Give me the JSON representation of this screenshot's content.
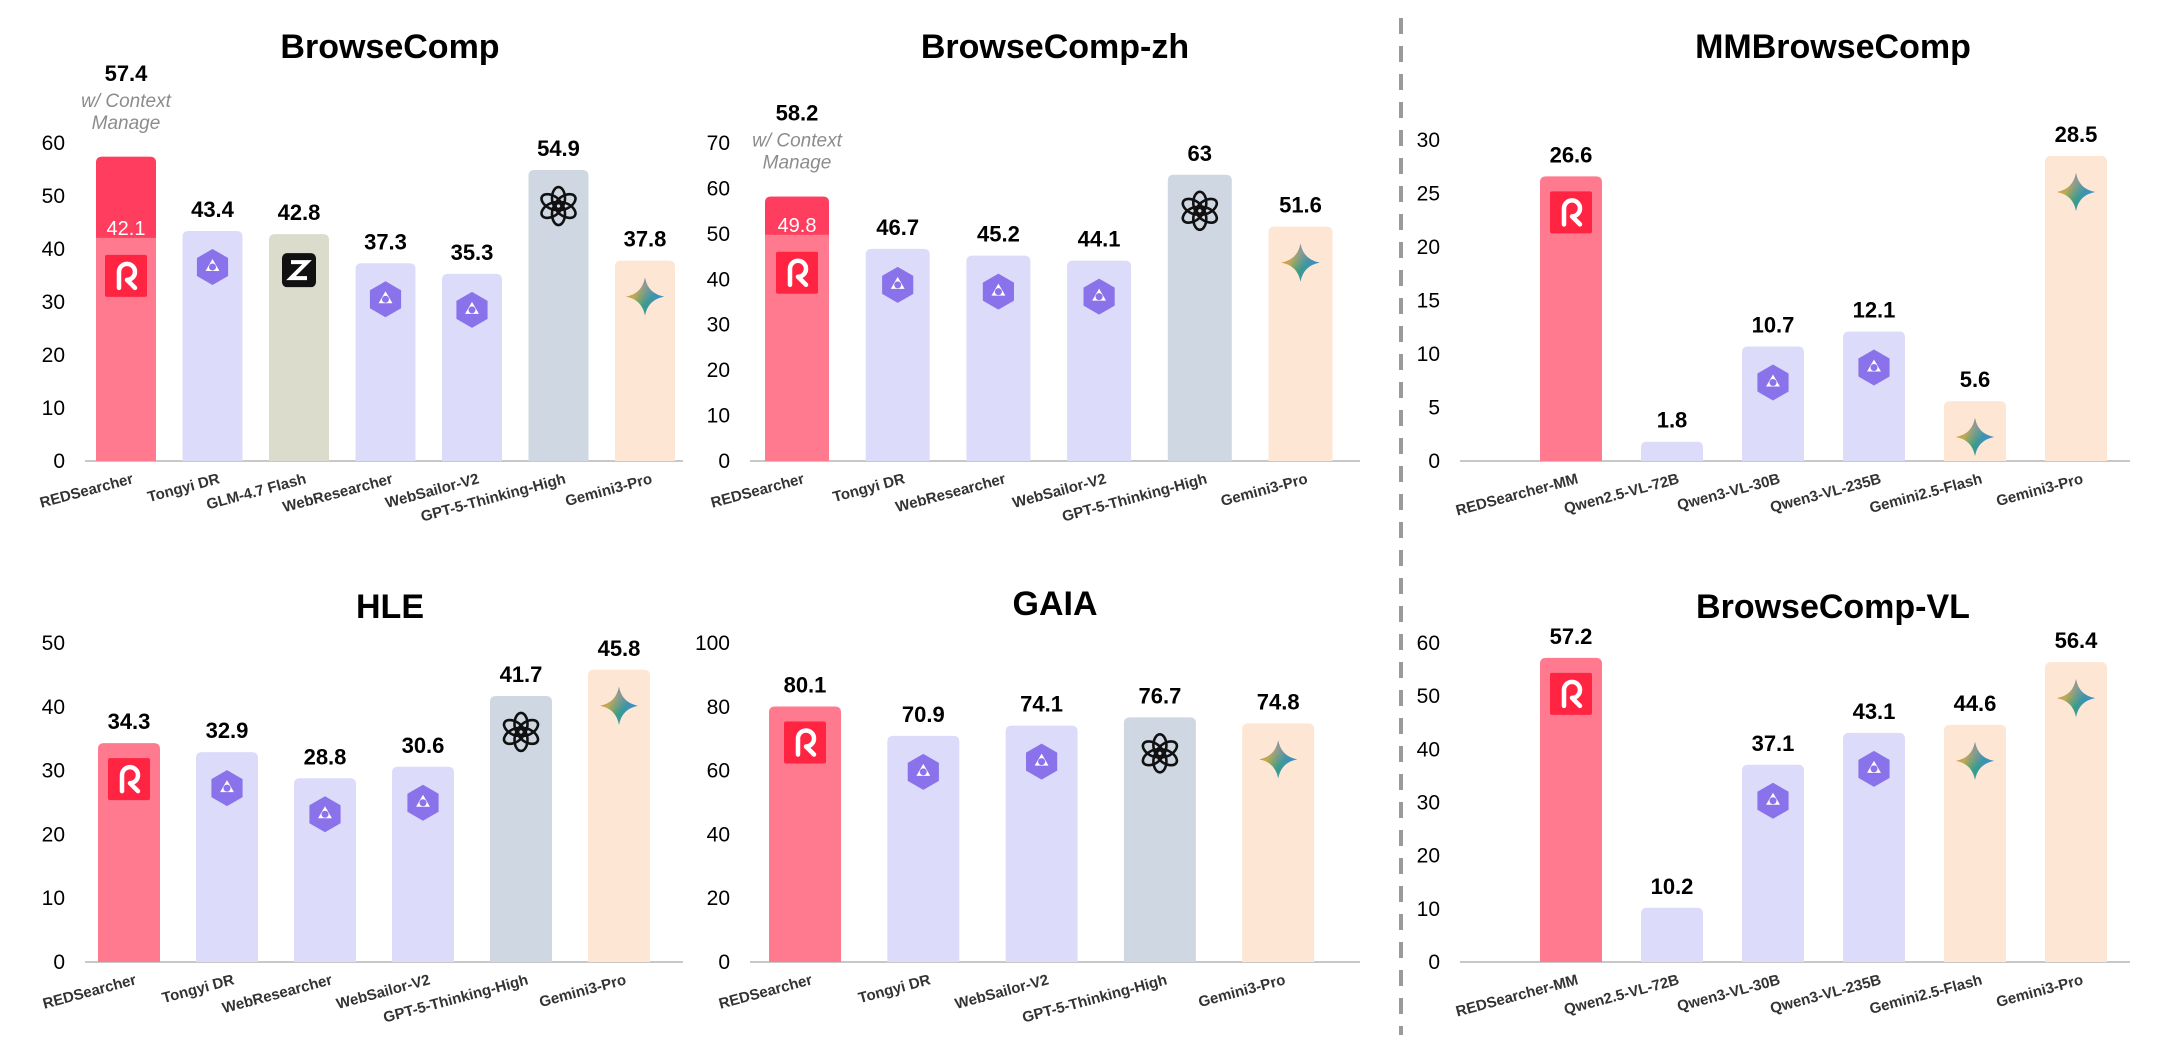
{
  "colors": {
    "redsearcher": "#ff7a8e",
    "redsearcher_dark": "#ff3d5f",
    "qwen": "#dcdcfa",
    "glm": "#dcdccc",
    "gpt": "#cfd8e2",
    "gemini": "#fde6d4",
    "axis": "#c8c8c8",
    "divider": "#9a9a9a"
  },
  "chart_data": [
    {
      "type": "bar",
      "title": "BrowseComp",
      "yticks": [
        0,
        10,
        20,
        30,
        40,
        50,
        60
      ],
      "ylim": [
        0,
        62.5
      ],
      "categories": [
        "REDSearcher",
        "Tongyi DR",
        "GLM-4.7 Flash",
        "WebResearcher",
        "WebSailor-V2",
        "GPT-5-Thinking-High",
        "Gemini3-Pro"
      ],
      "values": [
        57.4,
        43.4,
        42.8,
        37.3,
        35.3,
        54.9,
        37.8
      ],
      "labels": [
        "57.4",
        "43.4",
        "42.8",
        "37.3",
        "35.3",
        "54.9",
        "37.8"
      ],
      "icons": [
        "rednote-icon",
        "qwen-icon",
        "zhipu-icon",
        "qwen-icon",
        "qwen-icon",
        "openai-icon",
        "gemini-icon"
      ],
      "colors": [
        "redsearcher",
        "qwen",
        "glm",
        "qwen",
        "qwen",
        "gpt",
        "gemini"
      ],
      "inner_value": 42.1,
      "inner_label": "42.1",
      "annotation": [
        "w/ Context",
        "Manage"
      ]
    },
    {
      "type": "bar",
      "title": "BrowseComp-zh",
      "yticks": [
        0,
        10,
        20,
        30,
        40,
        50,
        60,
        70
      ],
      "ylim": [
        0,
        71.5
      ],
      "categories": [
        "REDSearcher",
        "Tongyi DR",
        "WebResearcher",
        "WebSailor-V2",
        "GPT-5-Thinking-High",
        "Gemini3-Pro"
      ],
      "values": [
        58.2,
        46.7,
        45.2,
        44.1,
        63,
        51.6
      ],
      "labels": [
        "58.2",
        "46.7",
        "45.2",
        "44.1",
        "63",
        "51.6"
      ],
      "icons": [
        "rednote-icon",
        "qwen-icon",
        "qwen-icon",
        "qwen-icon",
        "openai-icon",
        "gemini-icon"
      ],
      "colors": [
        "redsearcher",
        "qwen",
        "qwen",
        "qwen",
        "gpt",
        "gemini"
      ],
      "inner_value": 49.8,
      "inner_label": "49.8",
      "annotation": [
        "w/ Context",
        "Manage"
      ]
    },
    {
      "type": "bar",
      "title": "MMBrowseComp",
      "yticks": [
        0,
        5,
        10,
        15,
        20,
        25,
        30
      ],
      "ylim": [
        0,
        31.5
      ],
      "categories": [
        "REDSearcher-MM",
        "Qwen2.5-VL-72B",
        "Qwen3-VL-30B",
        "Qwen3-VL-235B",
        "Gemini2.5-Flash",
        "Gemini3-Pro"
      ],
      "values": [
        26.6,
        1.8,
        10.7,
        12.1,
        5.6,
        28.5
      ],
      "labels": [
        "26.6",
        "1.8",
        "10.7",
        "12.1",
        "5.6",
        "28.5"
      ],
      "icons": [
        "rednote-icon",
        "",
        "qwen-icon",
        "qwen-icon",
        "gemini-icon",
        "gemini-icon"
      ],
      "colors": [
        "redsearcher",
        "qwen",
        "qwen",
        "qwen",
        "gemini",
        "gemini"
      ]
    },
    {
      "type": "bar",
      "title": "HLE",
      "yticks": [
        0,
        10,
        20,
        30,
        40,
        50
      ],
      "ylim": [
        0,
        51.5
      ],
      "categories": [
        "REDSearcher",
        "Tongyi DR",
        "WebResearcher",
        "WebSailor-V2",
        "GPT-5-Thinking-High",
        "Gemini3-Pro"
      ],
      "values": [
        34.3,
        32.9,
        28.8,
        30.6,
        41.7,
        45.8
      ],
      "labels": [
        "34.3",
        "32.9",
        "28.8",
        "30.6",
        "41.7",
        "45.8"
      ],
      "icons": [
        "rednote-icon",
        "qwen-icon",
        "qwen-icon",
        "qwen-icon",
        "openai-icon",
        "gemini-icon"
      ],
      "colors": [
        "redsearcher",
        "qwen",
        "qwen",
        "qwen",
        "gpt",
        "gemini"
      ]
    },
    {
      "type": "bar",
      "title": "GAIA",
      "yticks": [
        0,
        20,
        40,
        60,
        80,
        100
      ],
      "ylim": [
        0,
        102
      ],
      "categories": [
        "REDSearcher",
        "Tongyi DR",
        "WebSailor-V2",
        "GPT-5-Thinking-High",
        "Gemini3-Pro"
      ],
      "values": [
        80.1,
        70.9,
        74.1,
        76.7,
        74.8
      ],
      "labels": [
        "80.1",
        "70.9",
        "74.1",
        "76.7",
        "74.8"
      ],
      "icons": [
        "rednote-icon",
        "qwen-icon",
        "qwen-icon",
        "openai-icon",
        "gemini-icon"
      ],
      "colors": [
        "redsearcher",
        "qwen",
        "qwen",
        "gpt",
        "gemini"
      ]
    },
    {
      "type": "bar",
      "title": "BrowseComp-VL",
      "yticks": [
        0,
        10,
        20,
        30,
        40,
        50,
        60
      ],
      "ylim": [
        0,
        61.5
      ],
      "categories": [
        "REDSearcher-MM",
        "Qwen2.5-VL-72B",
        "Qwen3-VL-30B",
        "Qwen3-VL-235B",
        "Gemini2.5-Flash",
        "Gemini3-Pro"
      ],
      "values": [
        57.2,
        10.2,
        37.1,
        43.1,
        44.6,
        56.4
      ],
      "labels": [
        "57.2",
        "10.2",
        "37.1",
        "43.1",
        "44.6",
        "56.4"
      ],
      "icons": [
        "rednote-icon",
        "",
        "qwen-icon",
        "qwen-icon",
        "gemini-icon",
        "gemini-icon"
      ],
      "colors": [
        "redsearcher",
        "qwen",
        "qwen",
        "qwen",
        "gemini",
        "gemini"
      ]
    }
  ]
}
